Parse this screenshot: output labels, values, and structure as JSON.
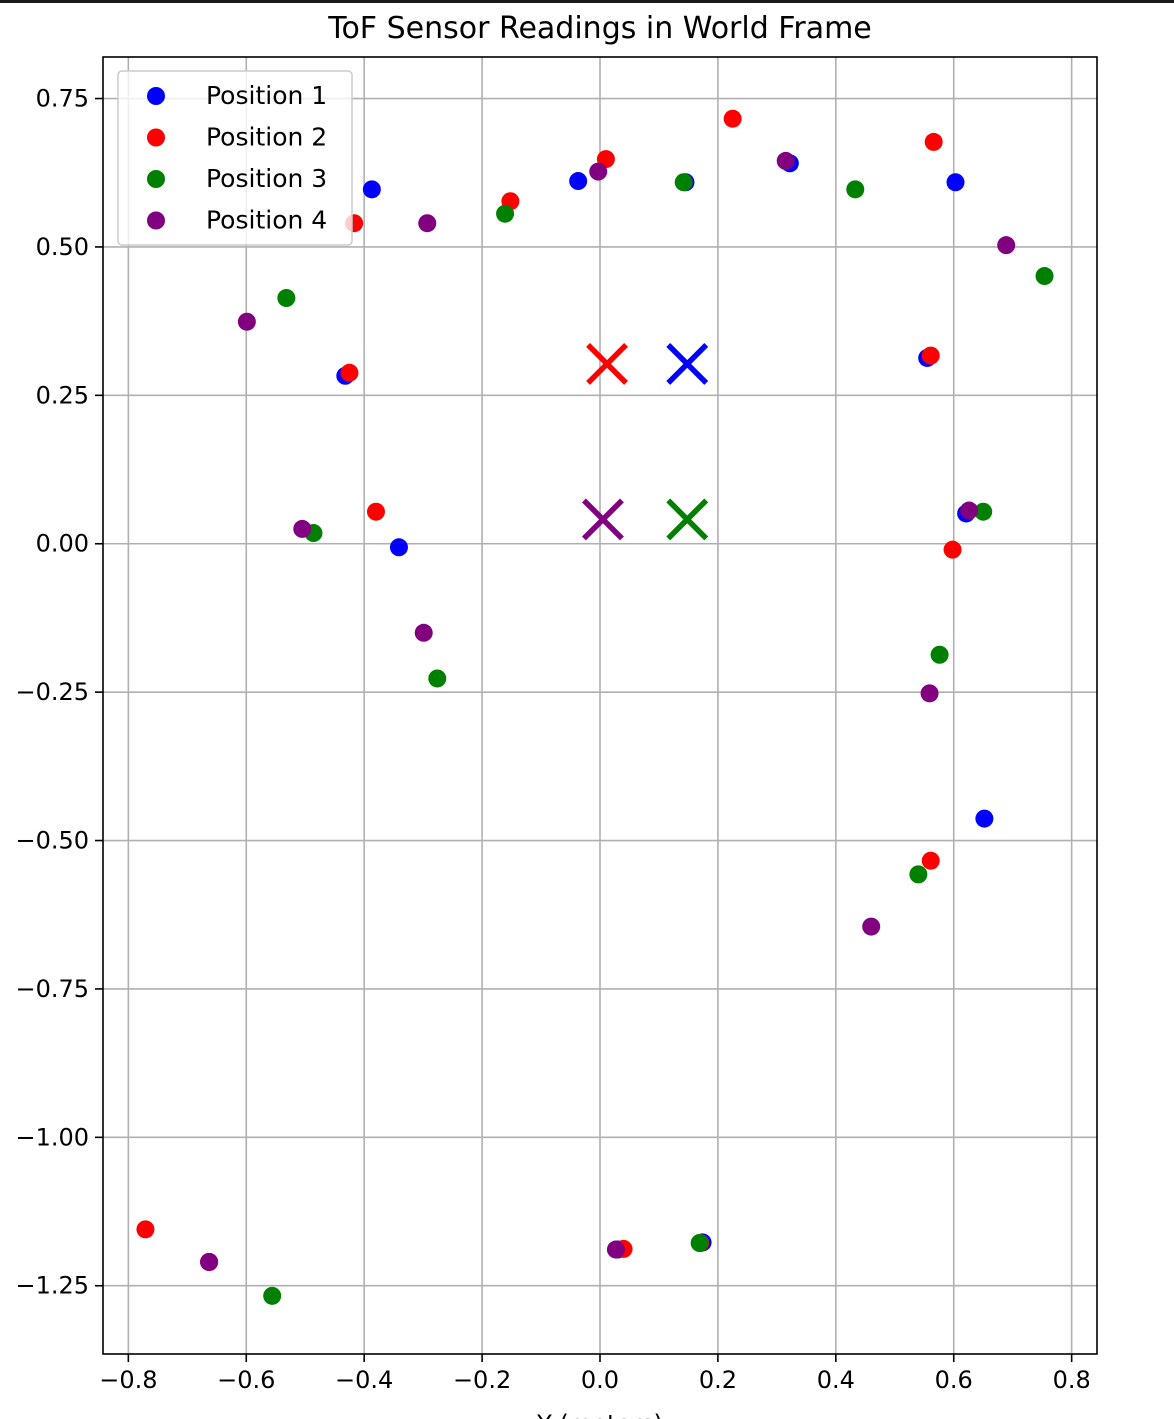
{
  "chart_data": {
    "type": "scatter",
    "title": "ToF Sensor Readings in World Frame",
    "xlabel": "Y (meters)",
    "ylabel": "",
    "xlim": [
      -0.843,
      0.843
    ],
    "ylim": [
      -1.365,
      0.82
    ],
    "xticks": [
      -0.8,
      -0.6,
      -0.4,
      -0.2,
      0.0,
      0.2,
      0.4,
      0.6,
      0.8
    ],
    "xtick_labels": [
      "−0.8",
      "−0.6",
      "−0.4",
      "−0.2",
      "0.0",
      "0.2",
      "0.4",
      "0.6",
      "0.8"
    ],
    "yticks": [
      0.75,
      0.5,
      0.25,
      0.0,
      -0.25,
      -0.5,
      -0.75,
      -1.0,
      -1.25
    ],
    "ytick_labels": [
      "0.75",
      "0.50",
      "0.25",
      "0.00",
      "−0.25",
      "−0.50",
      "−0.75",
      "−1.00",
      "−1.25"
    ],
    "grid": true,
    "legend_position": "top-left",
    "series": [
      {
        "name": "Position 1",
        "color": "#0000ff",
        "marker": [
          0.148,
          0.303
        ],
        "points": [
          [
            -0.387,
            0.597
          ],
          [
            -0.037,
            0.611
          ],
          [
            0.145,
            0.609
          ],
          [
            0.322,
            0.641
          ],
          [
            0.603,
            0.609
          ],
          [
            -0.432,
            0.283
          ],
          [
            0.555,
            0.313
          ],
          [
            -0.341,
            -0.006
          ],
          [
            0.621,
            0.051
          ],
          [
            0.652,
            -0.463
          ],
          [
            0.174,
            -1.177
          ],
          [
            -0.663,
            -1.21
          ],
          [
            0.03,
            -1.189
          ]
        ]
      },
      {
        "name": "Position 2",
        "color": "#ff0000",
        "marker": [
          0.012,
          0.303
        ],
        "points": [
          [
            -0.417,
            0.54
          ],
          [
            -0.152,
            0.577
          ],
          [
            0.01,
            0.648
          ],
          [
            0.225,
            0.716
          ],
          [
            0.566,
            0.677
          ],
          [
            -0.425,
            0.288
          ],
          [
            0.561,
            0.317
          ],
          [
            -0.38,
            0.054
          ],
          [
            0.598,
            -0.01
          ],
          [
            0.561,
            -0.534
          ],
          [
            -0.771,
            -1.155
          ],
          [
            0.04,
            -1.188
          ],
          [
            0.17,
            -1.178
          ],
          [
            -0.663,
            -1.21
          ]
        ]
      },
      {
        "name": "Position 3",
        "color": "#008000",
        "marker": [
          0.148,
          0.041
        ],
        "points": [
          [
            -0.161,
            0.556
          ],
          [
            0.142,
            0.609
          ],
          [
            0.433,
            0.597
          ],
          [
            0.754,
            0.451
          ],
          [
            -0.532,
            0.414
          ],
          [
            -0.486,
            0.018
          ],
          [
            -0.276,
            -0.227
          ],
          [
            0.65,
            0.054
          ],
          [
            0.576,
            -0.187
          ],
          [
            0.54,
            -0.557
          ],
          [
            0.169,
            -1.178
          ],
          [
            -0.556,
            -1.267
          ]
        ]
      },
      {
        "name": "Position 4",
        "color": "#800080",
        "marker": [
          0.005,
          0.041
        ],
        "points": [
          [
            -0.293,
            0.54
          ],
          [
            -0.003,
            0.627
          ],
          [
            0.315,
            0.645
          ],
          [
            0.689,
            0.503
          ],
          [
            -0.599,
            0.374
          ],
          [
            -0.505,
            0.025
          ],
          [
            -0.299,
            -0.15
          ],
          [
            0.626,
            0.056
          ],
          [
            0.559,
            -0.252
          ],
          [
            0.46,
            -0.645
          ],
          [
            0.027,
            -1.189
          ],
          [
            -0.663,
            -1.21
          ]
        ]
      }
    ]
  }
}
